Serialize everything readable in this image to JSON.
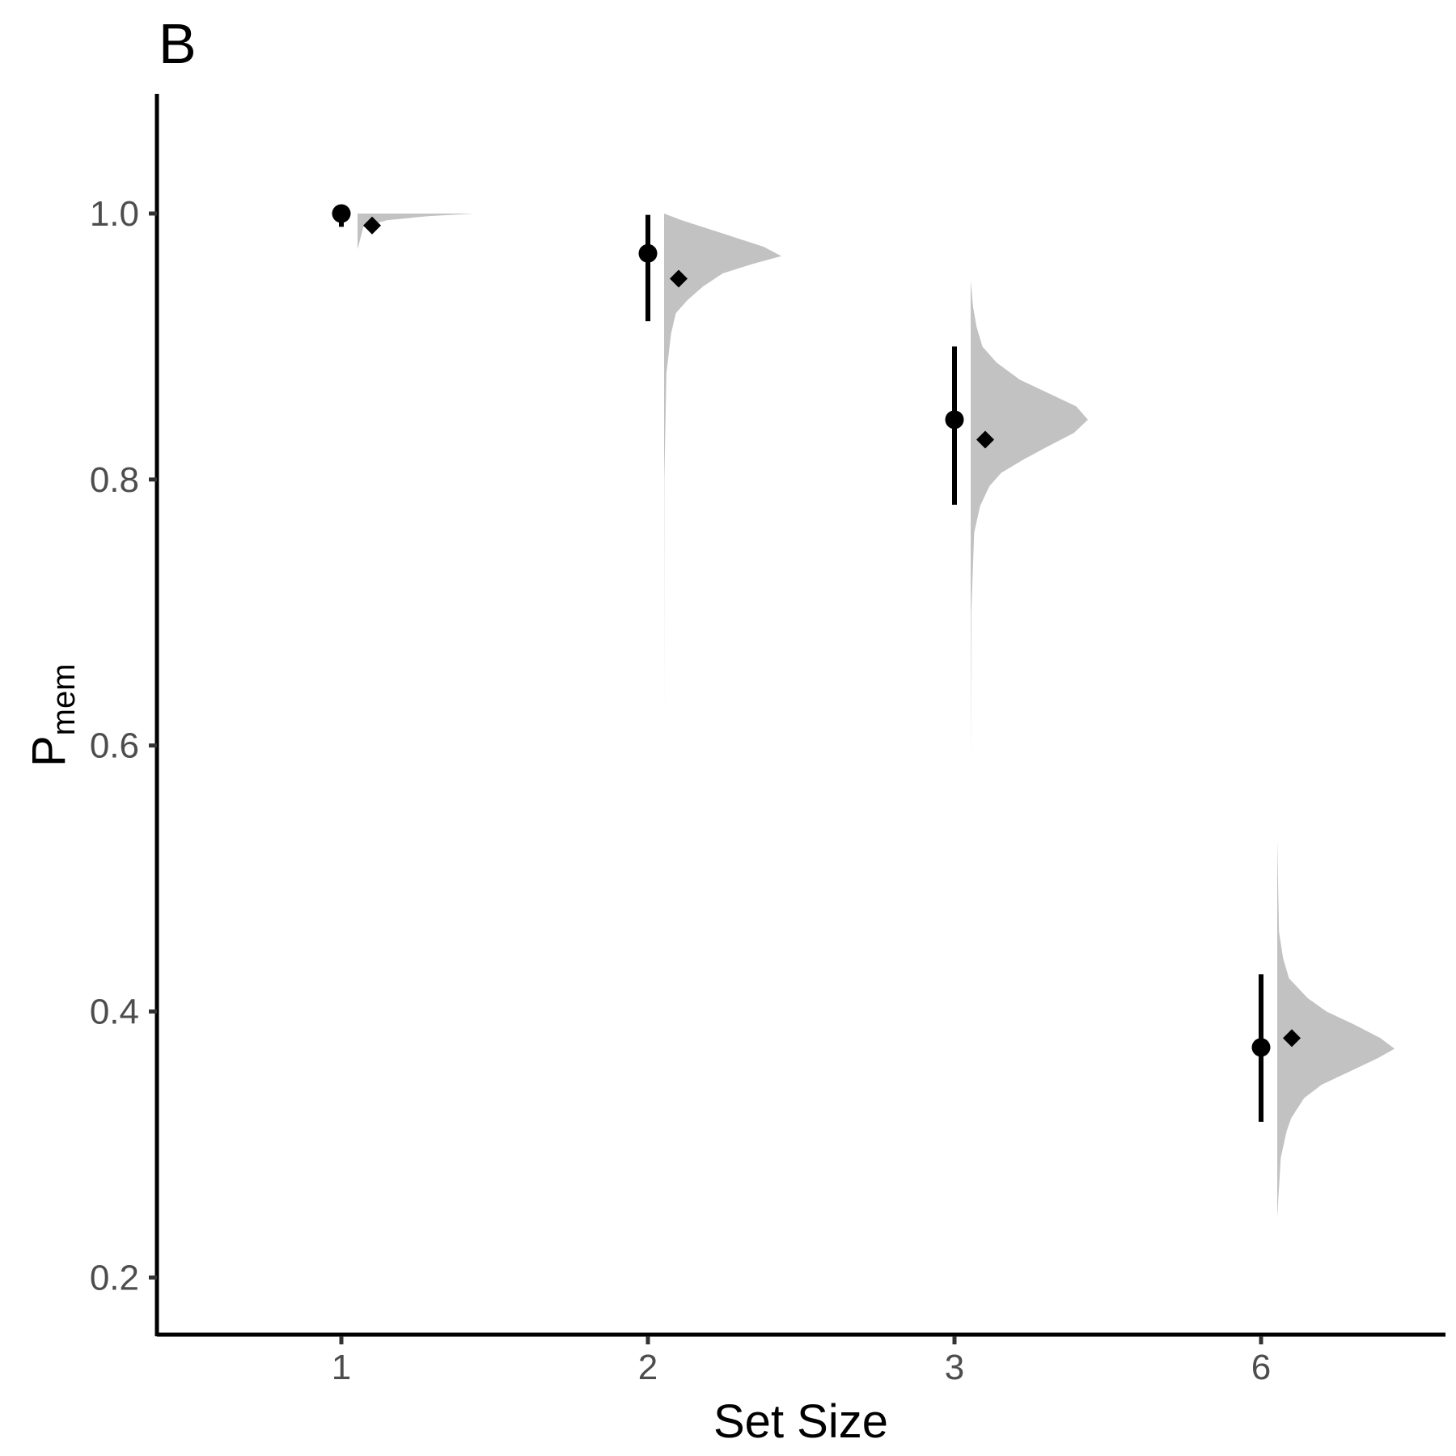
{
  "chart_data": {
    "type": "scatter",
    "panel_label": "B",
    "xlabel": "Set Size",
    "ylabel": "P",
    "ylabel_subscript": "mem",
    "categories": [
      "1",
      "2",
      "3",
      "6"
    ],
    "ylim": [
      0.157,
      1.09
    ],
    "yticks": [
      0.2,
      0.4,
      0.6,
      0.8,
      1.0
    ],
    "ytick_labels": [
      "0.2",
      "0.4",
      "0.6",
      "0.8",
      "1.0"
    ],
    "grid": false,
    "observed": {
      "marker": "circle",
      "points": [
        {
          "x": "1",
          "y": 1.0,
          "lower": 0.99,
          "upper": 1.0
        },
        {
          "x": "2",
          "y": 0.97,
          "lower": 0.919,
          "upper": 0.999
        },
        {
          "x": "3",
          "y": 0.845,
          "lower": 0.781,
          "upper": 0.9
        },
        {
          "x": "6",
          "y": 0.373,
          "lower": 0.317,
          "upper": 0.428
        }
      ]
    },
    "predicted": {
      "marker": "diamond",
      "points": [
        {
          "x": "1",
          "y": 0.991
        },
        {
          "x": "2",
          "y": 0.951
        },
        {
          "x": "3",
          "y": 0.83
        },
        {
          "x": "6",
          "y": 0.38
        }
      ]
    },
    "distributions": [
      {
        "x": "1",
        "ymin": 0.973,
        "ymax": 1.0,
        "mode": 1.0,
        "ys": [
          0.973,
          0.99,
          0.995,
          0.998,
          1.0
        ],
        "ws": [
          0.0,
          0.05,
          0.25,
          0.6,
          1.0
        ]
      },
      {
        "x": "2",
        "ymin": 0.61,
        "ymax": 1.0,
        "mode": 0.968,
        "ys": [
          0.61,
          0.8,
          0.88,
          0.91,
          0.925,
          0.935,
          0.945,
          0.955,
          0.962,
          0.968,
          0.975,
          0.985,
          0.995,
          1.0
        ],
        "ws": [
          0.0,
          0.002,
          0.02,
          0.06,
          0.1,
          0.2,
          0.33,
          0.5,
          0.75,
          1.0,
          0.85,
          0.5,
          0.15,
          0.0
        ]
      },
      {
        "x": "3",
        "ymin": 0.59,
        "ymax": 0.95,
        "mode": 0.845,
        "ys": [
          0.59,
          0.7,
          0.76,
          0.78,
          0.795,
          0.805,
          0.815,
          0.825,
          0.835,
          0.845,
          0.855,
          0.865,
          0.875,
          0.888,
          0.9,
          0.915,
          0.93,
          0.95
        ],
        "ws": [
          0.0,
          0.005,
          0.03,
          0.08,
          0.16,
          0.26,
          0.45,
          0.66,
          0.88,
          1.0,
          0.9,
          0.66,
          0.42,
          0.22,
          0.1,
          0.05,
          0.02,
          0.0
        ]
      },
      {
        "x": "6",
        "ymin": 0.245,
        "ymax": 0.53,
        "mode": 0.372,
        "ys": [
          0.245,
          0.29,
          0.31,
          0.32,
          0.335,
          0.345,
          0.355,
          0.365,
          0.372,
          0.38,
          0.39,
          0.4,
          0.41,
          0.425,
          0.44,
          0.46,
          0.53
        ],
        "ws": [
          0.0,
          0.03,
          0.08,
          0.12,
          0.23,
          0.38,
          0.62,
          0.86,
          1.0,
          0.88,
          0.66,
          0.42,
          0.26,
          0.1,
          0.05,
          0.015,
          0.0
        ]
      }
    ]
  }
}
